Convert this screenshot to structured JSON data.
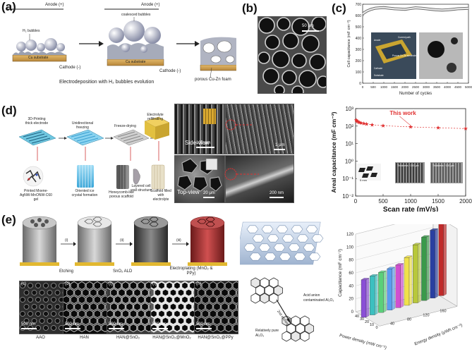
{
  "panel_a": {
    "tag": "(a)",
    "anode": "Anode (+)",
    "h2_bubbles": "H₂ bubbles",
    "coalesced": "coalesced bubbles",
    "cu_substrate": "Cu substrate",
    "cathode": "Cathode (-)",
    "porous": "porous Cu-Zn foam",
    "caption": "Electrodeposition with H₂ bubbles evolution"
  },
  "panel_b": {
    "tag": "(b)",
    "scale": "50 μm"
  },
  "panel_c": {
    "tag": "(c)",
    "inset_labels": [
      "Current path",
      "Porous Cu-Zn electrode",
      "Anode",
      "Cathode",
      "Substrate"
    ],
    "chart_data": {
      "type": "line",
      "xlabel": "Number of cycles",
      "ylabel": "Cell capacitance (mF cm⁻²)",
      "xlim": [
        0,
        5000
      ],
      "ylim": [
        0,
        700
      ],
      "xticks": [
        0,
        500,
        1000,
        1500,
        2000,
        2500,
        3000,
        3500,
        4000,
        4500,
        5000
      ],
      "yticks": [
        0,
        100,
        200,
        300,
        400,
        500,
        600,
        700
      ],
      "x": [
        0,
        200,
        400,
        600,
        800,
        1000,
        1250,
        1500,
        1750,
        2000,
        2250,
        2500,
        2750,
        3000,
        3250,
        3500,
        3750,
        4000,
        4250,
        4500,
        4750,
        5000
      ],
      "y": [
        615,
        640,
        655,
        665,
        668,
        670,
        665,
        660,
        658,
        655,
        662,
        668,
        665,
        660,
        655,
        650,
        648,
        650,
        655,
        660,
        662,
        664
      ]
    }
  },
  "panel_d": {
    "tag": "(d)",
    "steps": [
      "3D-Printing thick electrode",
      "Unidirectional freezing",
      "Freeze-drying",
      "Electrolyte refiltrating"
    ],
    "stages": [
      "Printed Mxene-AgNW-MnONW-C60 gel",
      "Oriented ice crystal formation",
      "Honeycomb-like porous scaffold",
      "Layered cell wall structure",
      "Scaffold filled with electrolyte"
    ],
    "side_view": "Side-view",
    "top_view": "Top-view",
    "scales": [
      "100 μm",
      "1 μm",
      "20 μm",
      "200 nm"
    ],
    "inset_scales": [
      "5 mm",
      "Thickness ~200 μm",
      "Thickness ~100 μm"
    ],
    "chart_data": {
      "type": "scatter",
      "xlabel": "Scan rate (mV/s)",
      "ylabel": "Areal capacitance (mF cm⁻²)",
      "xlim": [
        0,
        2000
      ],
      "ylim_log": [
        0.01,
        1000
      ],
      "xticks": [
        0,
        500,
        1000,
        1500,
        2000
      ],
      "yticks": [
        "10⁻²",
        "10⁻¹",
        "10⁰",
        "10¹",
        "10²",
        "10³"
      ],
      "annotation": "This work",
      "series": [
        {
          "x": [
            10,
            20,
            30,
            50,
            70,
            100,
            150,
            200,
            300,
            500,
            1000,
            1500,
            2000
          ],
          "y": [
            220,
            200,
            185,
            170,
            160,
            150,
            140,
            130,
            118,
            105,
            90,
            80,
            72
          ]
        }
      ]
    }
  },
  "panel_e": {
    "tag": "(e)",
    "steps": [
      "(i)",
      "(ii)",
      "(iii)"
    ],
    "step_labels": [
      "Etching",
      "SnO₂ ALD",
      "Electroplating (MnO₂ & PPy)"
    ],
    "sem_labels": [
      "AAO",
      "HAN",
      "HAN@SnO₂",
      "HAN@SnO₂@MnO₂",
      "HAN@SnO₂@PPy"
    ],
    "sem_tags": [
      "(c)",
      "(d)",
      "(f)",
      "(f)",
      "(h)"
    ],
    "scale": "500 nm",
    "acid_label": "Acid anion contaminated Al₂O₃",
    "pure_label": "Relatively pure Al₂O₃",
    "etching": "2nd etching",
    "chart_data": {
      "type": "bar",
      "zlabel": "Capacitance (mF cm⁻²)",
      "xlabel": "Power density (mW cm⁻²)",
      "ylabel": "Energy density (μWh cm⁻²)",
      "zticks": [
        0,
        20,
        40,
        60,
        80,
        100,
        120
      ],
      "x_ticks": [
        40,
        30,
        20,
        10,
        0
      ],
      "y_ticks": [
        40,
        80,
        120,
        160
      ],
      "values": [
        58,
        60,
        62,
        64,
        66,
        74,
        90,
        98,
        105,
        130
      ],
      "colors": [
        "#8a4fd6",
        "#3cc0c0",
        "#5ad07a",
        "#5a9cf0",
        "#d04fd0",
        "#f0e24a",
        "#b8c83a",
        "#3a9a4a",
        "#2a3fa0",
        "#c02a2a"
      ]
    }
  }
}
